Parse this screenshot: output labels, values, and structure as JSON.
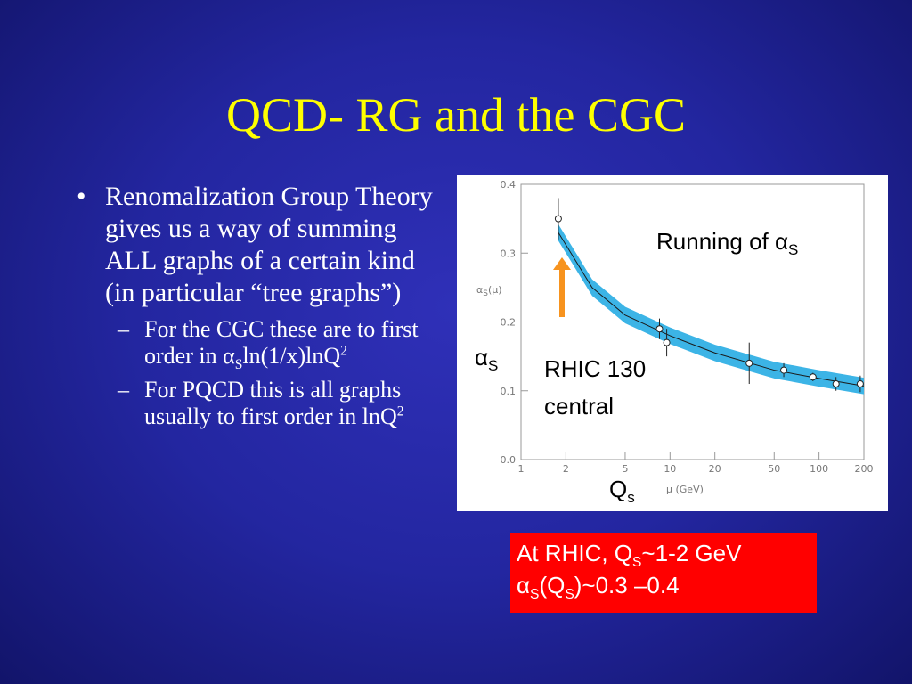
{
  "slide": {
    "title": "QCD- RG and the CGC",
    "bullets": [
      {
        "text": "Renomalization Group Theory gives us a way of summing ALL graphs of a certain kind (in particular “tree graphs”)",
        "sub": [
          [
            "For the CGC these are to first order in ",
            "α",
            "S",
            "ln(1/x)lnQ",
            "2"
          ],
          [
            "For PQCD this is all graphs usually to first order in lnQ",
            "2"
          ]
        ]
      }
    ],
    "box": [
      [
        "At RHIC, Q",
        "S",
        "~1-2 GeV"
      ],
      [
        "α",
        "S",
        "(Q",
        "S",
        ")~0.3 –0.4"
      ]
    ]
  },
  "chart_data": {
    "type": "scatter",
    "x_label": "μ (GeV)",
    "y_label": [
      "α",
      "S",
      "(μ)"
    ],
    "xscale": "log",
    "xlim": [
      1,
      200
    ],
    "xticks": [
      1,
      2,
      5,
      10,
      20,
      50,
      100,
      200
    ],
    "ylim": [
      0,
      0.4
    ],
    "yticks": [
      {
        "value": 0,
        "label": "0.0"
      },
      0.1,
      0.2,
      0.3,
      0.4
    ],
    "series": [
      {
        "x": [
          1.78,
          3,
          5,
          10,
          20,
          50,
          100,
          200
        ],
        "values": [
          0.33,
          0.25,
          0.21,
          0.18,
          0.155,
          0.13,
          0.118,
          0.107
        ],
        "color": "#1a1a1a",
        "band_color": "#3cb4e6",
        "band_width": 0.012
      },
      {
        "x": [
          1.78,
          8.5,
          9.5,
          34,
          58,
          91,
          130,
          189
        ],
        "values": [
          0.35,
          0.19,
          0.17,
          0.14,
          0.13,
          0.12,
          0.11,
          0.11
        ],
        "errors": [
          0.03,
          0.015,
          0.02,
          0.03,
          0.01,
          0.006,
          0.01,
          0.012
        ],
        "color": "#222222"
      }
    ],
    "annotations": {
      "running": [
        "Running of ",
        "α",
        "S"
      ],
      "alpha": [
        "α",
        "S"
      ],
      "rhic": [
        "RHIC 130",
        "central"
      ],
      "qs": [
        "Q",
        "s"
      ]
    }
  }
}
